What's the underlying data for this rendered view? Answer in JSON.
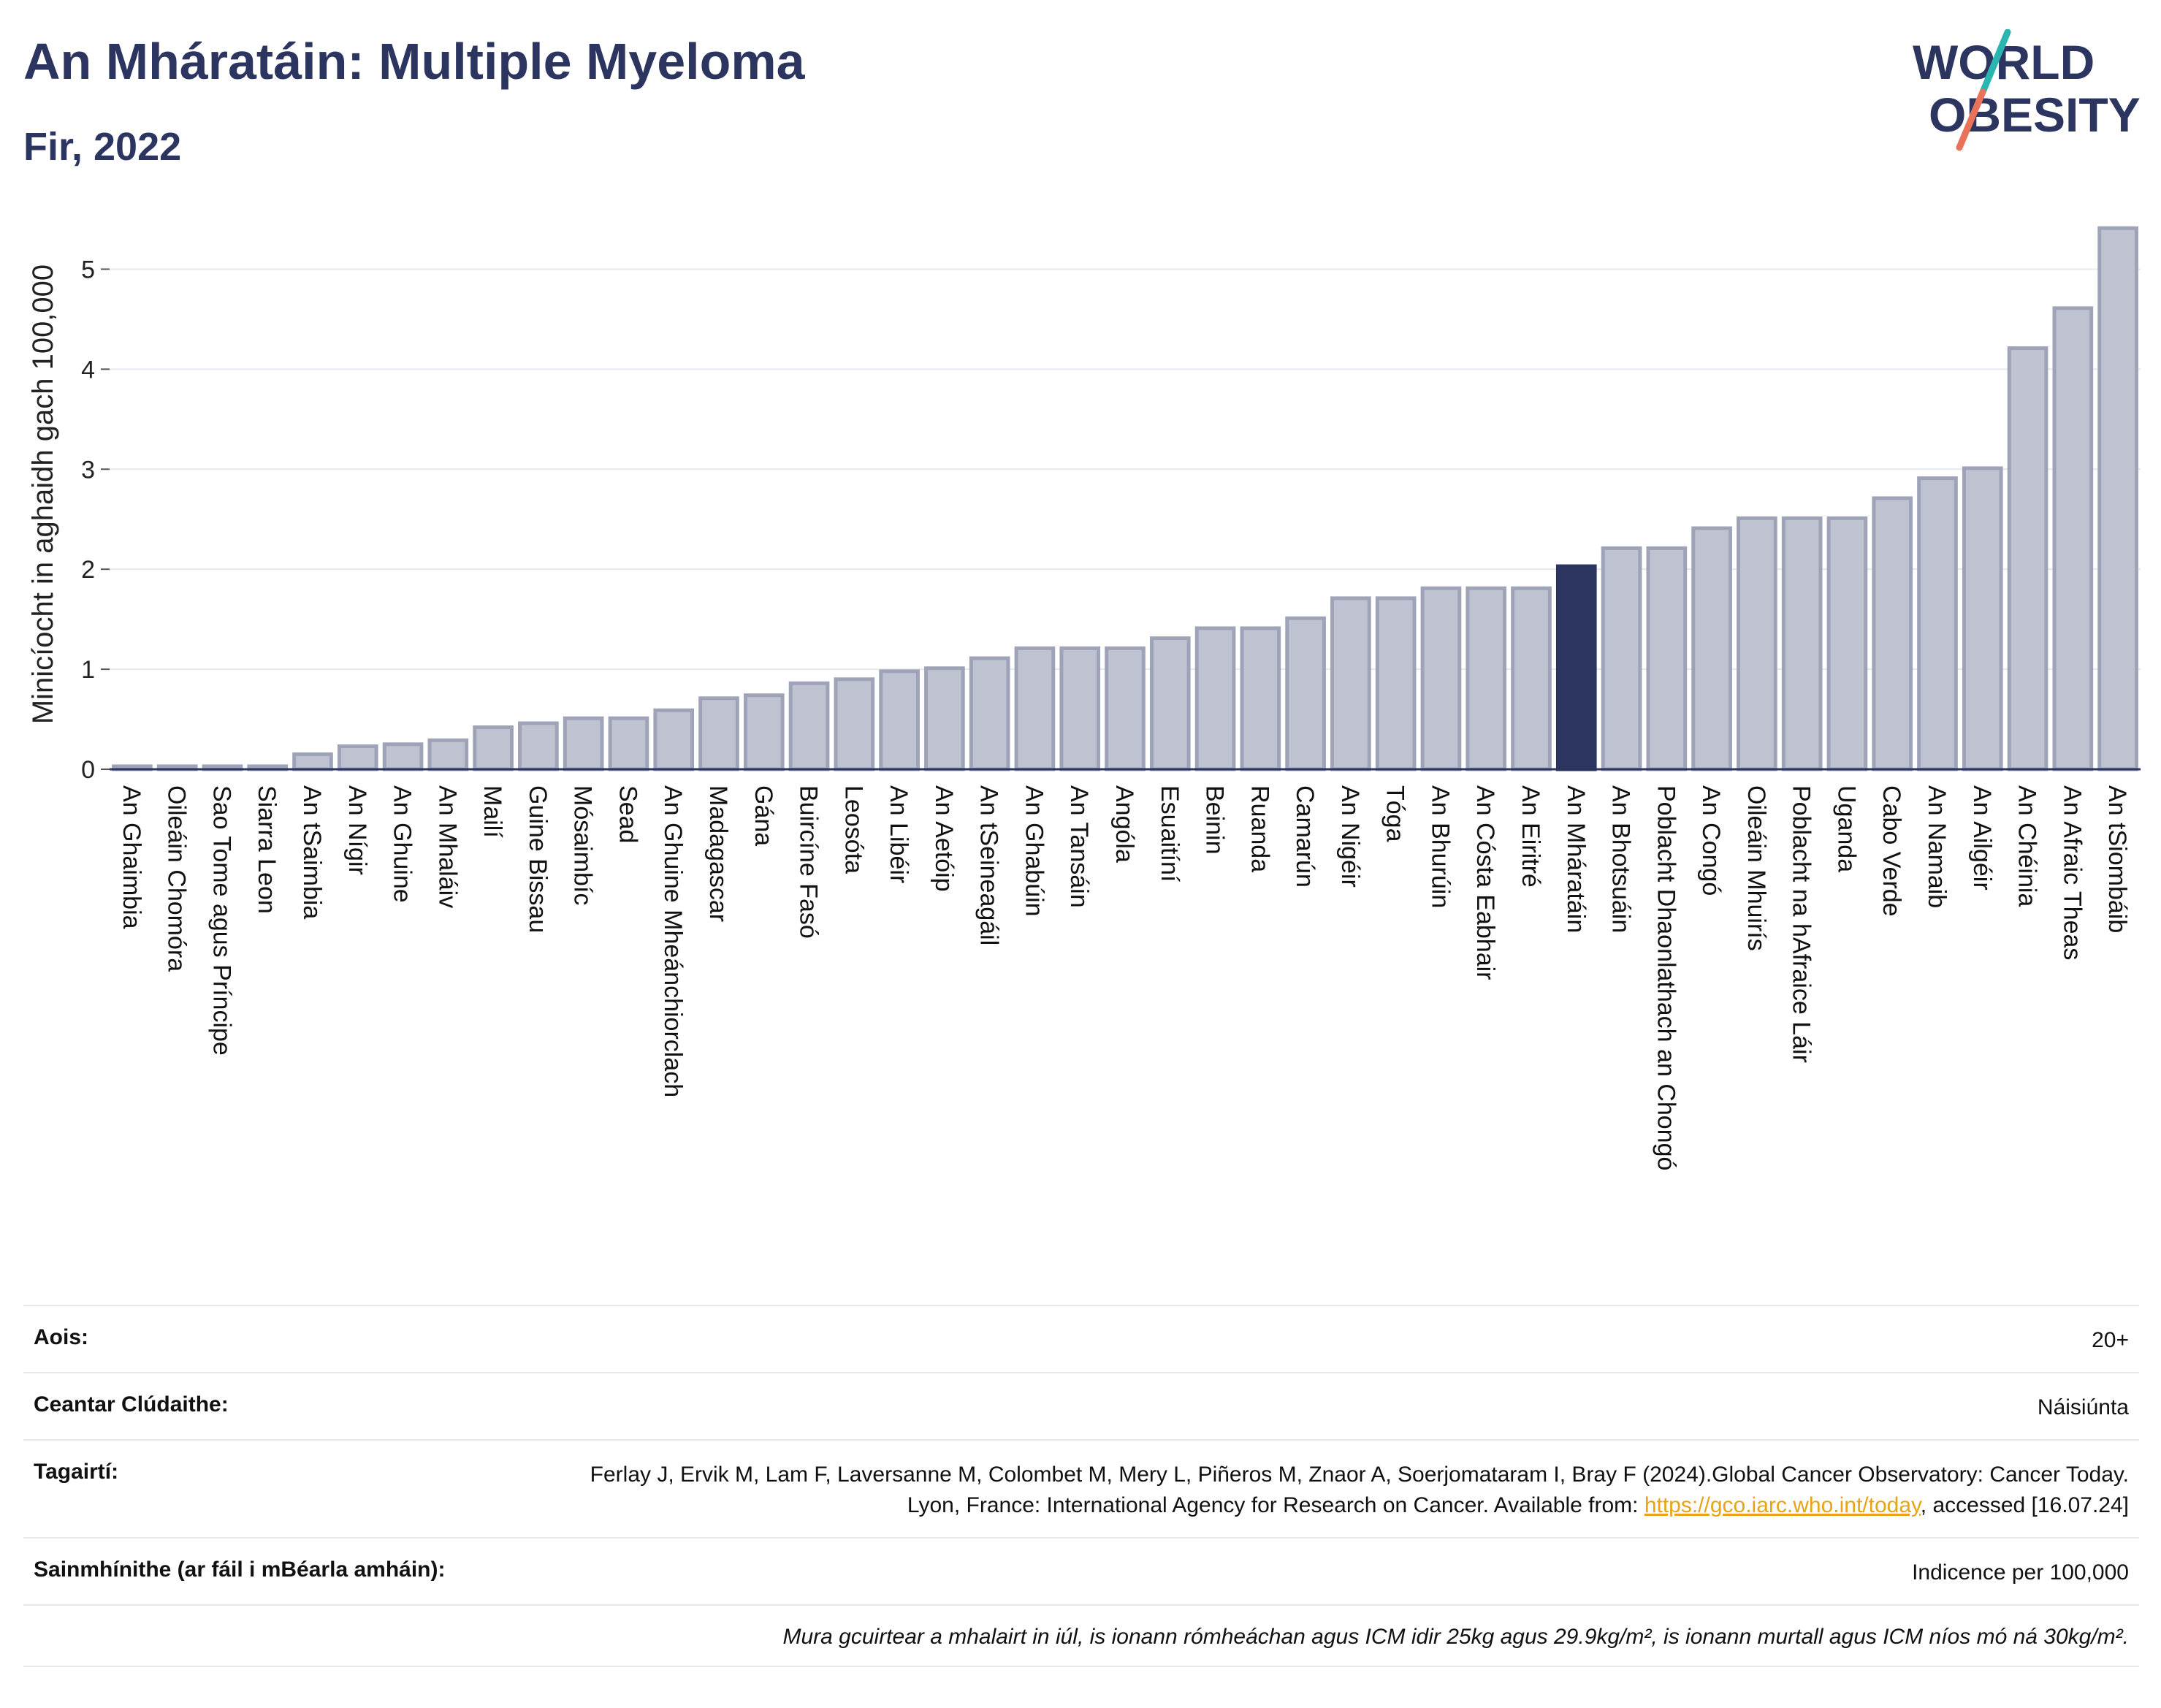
{
  "header": {
    "title": "An Mháratáin: Multiple Myeloma",
    "subtitle": "Fir, 2022"
  },
  "logo": {
    "line1": "WORLD",
    "line2": "OBESITY",
    "colors": {
      "text": "#2b3560",
      "slash_top": "#2bb5b0",
      "slash_bottom": "#e8735a"
    }
  },
  "colors": {
    "bar": "#bfc3d1",
    "bar_stroke": "#9ea3b8",
    "highlight": "#2b3560",
    "axis": "#2b3560",
    "grid": "#e6e8f0"
  },
  "chart_data": {
    "type": "bar",
    "ylabel": "Minicíocht in aghaidh gach 100,000",
    "xlabel": "",
    "ylim": [
      0,
      5.5
    ],
    "yticks": [
      0,
      1,
      2,
      3,
      4,
      5
    ],
    "grid": true,
    "highlight": "An Mháratáin",
    "categories": [
      "An Ghaimbia",
      "Oileáin Chomóra",
      "Sao Tome agus Príncipe",
      "Siarra Leon",
      "An tSaimbia",
      "An Nígir",
      "An Ghuine",
      "An Mhaláiv",
      "Mailí",
      "Guine Bissau",
      "Mósaimbíc",
      "Sead",
      "An Ghuine Mheánchiorclach",
      "Madagascar",
      "Gána",
      "Buircíne Fasó",
      "Leosóta",
      "An Libéir",
      "An Aetóip",
      "An tSeineagáil",
      "An Ghabúin",
      "An Tansáin",
      "Angóla",
      "Esuaitíní",
      "Beinin",
      "Ruanda",
      "Camarún",
      "An Nigéir",
      "Tóga",
      "An Bhurúin",
      "An Cósta Eabhair",
      "An Eiritré",
      "An Mháratáin",
      "An Bhotsuáin",
      "Poblacht Dhaonlathach an Chongó",
      "An Congó",
      "Oileáin Mhuirís",
      "Poblacht na hAfraice Láir",
      "Uganda",
      "Cabo Verde",
      "An Namaib",
      "An Ailgéir",
      "An Chéinia",
      "An Afraic Theas",
      "An tSiombáib"
    ],
    "values": [
      0.03,
      0.03,
      0.03,
      0.03,
      0.15,
      0.23,
      0.25,
      0.29,
      0.42,
      0.46,
      0.51,
      0.51,
      0.59,
      0.71,
      0.74,
      0.86,
      0.9,
      0.98,
      1.01,
      1.11,
      1.21,
      1.21,
      1.21,
      1.31,
      1.41,
      1.41,
      1.51,
      1.71,
      1.71,
      1.81,
      1.81,
      1.81,
      2.03,
      2.21,
      2.21,
      2.41,
      2.51,
      2.51,
      2.51,
      2.71,
      2.91,
      3.01,
      4.21,
      4.61,
      5.41
    ]
  },
  "info": {
    "age_label": "Aois:",
    "age_value": "20+",
    "area_label": "Ceantar Clúdaithe:",
    "area_value": "Náisiúnta",
    "ref_label": "Tagairtí:",
    "ref_text": "Ferlay J, Ervik M, Lam F, Laversanne M, Colombet M, Mery L, Piñeros M, Znaor A, Soerjomataram I, Bray F (2024).Global Cancer Observatory: Cancer Today. Lyon, France: International Agency for Research on Cancer. Available from: ",
    "ref_link": "https://gco.iarc.who.int/today",
    "ref_tail": ", accessed [16.07.24]",
    "def_label": "Sainmhínithe (ar fáil i mBéarla amháin):",
    "def_value": "Indicence per 100,000",
    "note": "Mura gcuirtear a mhalairt in iúl, is ionann rómheáchan agus ICM idir 25kg agus 29.9kg/m², is ionann murtall agus ICM níos mó ná 30kg/m²."
  }
}
